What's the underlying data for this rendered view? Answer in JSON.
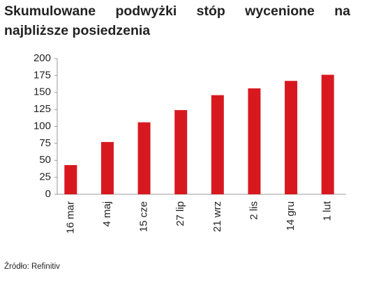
{
  "chart_data": {
    "type": "bar",
    "title": "Skumulowane podwyżki stóp wycenione na najbliższe posiedzenia",
    "categories": [
      "16 mar",
      "4 maj",
      "15 cze",
      "27 lip",
      "21 wrz",
      "2 lis",
      "14 gru",
      "1 lut"
    ],
    "values": [
      43,
      77,
      106,
      124,
      146,
      156,
      167,
      176
    ],
    "color": "#d7191f",
    "ylim": [
      0,
      200
    ],
    "yticks": [
      0,
      25,
      50,
      75,
      100,
      125,
      150,
      175,
      200
    ],
    "grid": false,
    "source": "Źródło: Refinitiv"
  }
}
